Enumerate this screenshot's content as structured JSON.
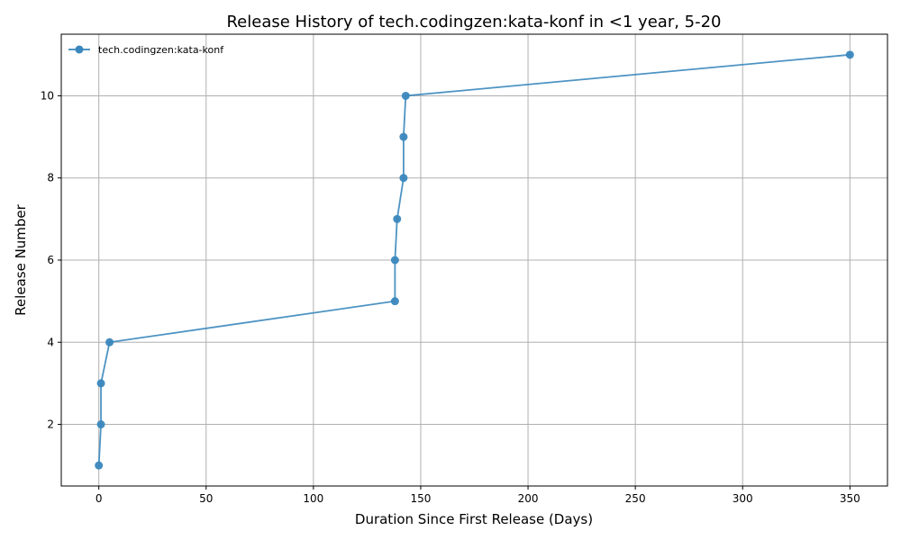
{
  "chart_data": {
    "type": "line",
    "title": "Release History of tech.codingzen:kata-konf in <1 year, 5-20",
    "xlabel": "Duration Since First Release (Days)",
    "ylabel": "Release Number",
    "xlim": [
      -17.5,
      367.5
    ],
    "ylim": [
      0.5,
      11.5
    ],
    "xticks": [
      0,
      50,
      100,
      150,
      200,
      250,
      300,
      350
    ],
    "yticks": [
      2,
      4,
      6,
      8,
      10
    ],
    "grid": true,
    "legend_position": "top-left",
    "series": [
      {
        "name": "tech.codingzen:kata-konf",
        "color": "#3a87bd",
        "marker": "circle",
        "x": [
          0,
          1,
          1,
          5,
          138,
          138,
          139,
          142,
          142,
          143,
          350
        ],
        "y": [
          1,
          2,
          3,
          4,
          5,
          6,
          7,
          8,
          9,
          10,
          11
        ]
      }
    ]
  }
}
